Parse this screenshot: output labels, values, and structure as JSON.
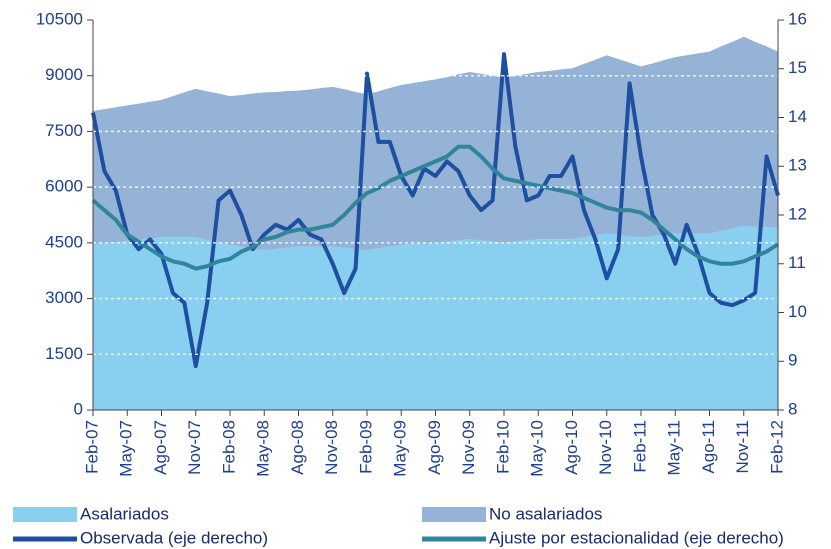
{
  "chart_data": {
    "type": "area",
    "categories": [
      "Feb-07",
      null,
      null,
      "May-07",
      null,
      null,
      "Ago-07",
      null,
      null,
      "Nov-07",
      null,
      null,
      "Feb-08",
      null,
      null,
      "May-08",
      null,
      null,
      "Ago-08",
      null,
      null,
      "Nov-08",
      null,
      null,
      "Feb-09",
      null,
      null,
      "May-09",
      null,
      null,
      "Ago-09",
      null,
      null,
      "Nov-09",
      null,
      null,
      "Feb-10",
      null,
      null,
      "May-10",
      null,
      null,
      "Ago-10",
      null,
      null,
      "Nov-10",
      null,
      null,
      "Feb-11",
      null,
      null,
      "May-11",
      null,
      null,
      "Ago-11",
      null,
      null,
      "Nov-11",
      null,
      null,
      "Feb-12"
    ],
    "series": [
      {
        "name": "Asalariados",
        "type": "area",
        "stacked": true,
        "color": "#88cff0",
        "values": [
          4450,
          4480,
          4520,
          4550,
          4580,
          4620,
          4650,
          4650,
          4650,
          4650,
          4580,
          4520,
          4450,
          4400,
          4350,
          4300,
          4330,
          4370,
          4400,
          4400,
          4400,
          4400,
          4370,
          4330,
          4300,
          4350,
          4400,
          4450,
          4470,
          4480,
          4500,
          4530,
          4570,
          4600,
          4570,
          4530,
          4500,
          4530,
          4570,
          4600,
          4600,
          4600,
          4600,
          4650,
          4700,
          4750,
          4720,
          4680,
          4650,
          4680,
          4720,
          4750,
          4750,
          4750,
          4750,
          4820,
          4880,
          4950,
          4930,
          4920,
          4900
        ]
      },
      {
        "name": "No asalariados",
        "type": "area",
        "stacked": true,
        "color": "#95b3d7",
        "values": [
          3600,
          3620,
          3630,
          3650,
          3670,
          3680,
          3700,
          3800,
          3900,
          4000,
          4000,
          4000,
          4000,
          4080,
          4170,
          4250,
          4230,
          4220,
          4200,
          4230,
          4270,
          4300,
          4270,
          4230,
          4200,
          4230,
          4270,
          4300,
          4330,
          4370,
          4400,
          4430,
          4470,
          4500,
          4480,
          4470,
          4450,
          4470,
          4480,
          4500,
          4530,
          4570,
          4600,
          4670,
          4730,
          4800,
          4730,
          4670,
          4600,
          4650,
          4700,
          4750,
          4800,
          4850,
          4900,
          4970,
          5030,
          5100,
          4980,
          4870,
          4750
        ]
      },
      {
        "name": "Observada (eje derecho)",
        "type": "line",
        "axis": "y2",
        "color": "#1e4fa0",
        "values": [
          14.1,
          12.9,
          12.5,
          11.6,
          11.3,
          11.5,
          11.2,
          10.4,
          10.2,
          8.9,
          10.2,
          12.3,
          12.5,
          12.0,
          11.3,
          11.6,
          11.8,
          11.7,
          11.9,
          11.6,
          11.5,
          11.0,
          10.4,
          10.9,
          14.9,
          13.5,
          13.5,
          12.8,
          12.4,
          12.95,
          12.8,
          13.1,
          12.9,
          12.4,
          12.1,
          12.3,
          15.3,
          13.4,
          12.3,
          12.4,
          12.8,
          12.8,
          13.2,
          12.1,
          11.5,
          10.7,
          11.3,
          14.7,
          13.2,
          12.0,
          11.6,
          11.0,
          11.8,
          11.2,
          10.4,
          10.2,
          10.15,
          10.25,
          10.4,
          13.2,
          12.4
        ]
      },
      {
        "name": "Ajuste por estacionalidad (eje derecho)",
        "type": "line",
        "axis": "y2",
        "color": "#31849b",
        "values": [
          12.3,
          12.1,
          11.9,
          11.6,
          11.45,
          11.3,
          11.15,
          11.05,
          11.0,
          10.9,
          10.95,
          11.05,
          11.1,
          11.25,
          11.35,
          11.5,
          11.55,
          11.65,
          11.7,
          11.7,
          11.75,
          11.8,
          12.0,
          12.25,
          12.45,
          12.55,
          12.7,
          12.8,
          12.9,
          13.0,
          13.1,
          13.2,
          13.4,
          13.4,
          13.2,
          12.95,
          12.75,
          12.7,
          12.65,
          12.6,
          12.55,
          12.5,
          12.45,
          12.35,
          12.25,
          12.15,
          12.1,
          12.1,
          12.05,
          11.9,
          11.7,
          11.5,
          11.3,
          11.15,
          11.05,
          11.0,
          11.0,
          11.05,
          11.15,
          11.25,
          11.4
        ]
      }
    ],
    "ylim": [
      0,
      10500
    ],
    "yticks": [
      0,
      1500,
      3000,
      4500,
      6000,
      7500,
      9000,
      10500
    ],
    "y2lim": [
      8,
      16
    ],
    "y2ticks": [
      8,
      9,
      10,
      11,
      12,
      13,
      14,
      15,
      16
    ],
    "grid": true,
    "legend": "bottom"
  }
}
